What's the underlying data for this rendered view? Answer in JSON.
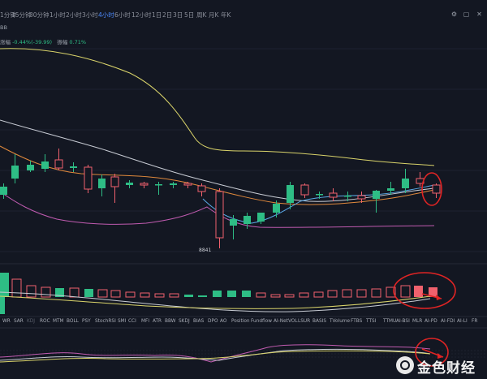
{
  "toolbar": {
    "timeframes": [
      "1分钟",
      "15分钟",
      "30分钟",
      "1小时",
      "2小时",
      "3小时",
      "4小时",
      "6小时",
      "12小时",
      "1日",
      "2日",
      "3日",
      "5日",
      "周K",
      "月K",
      "年K"
    ],
    "active_timeframe": "4小时",
    "icons": [
      "settings-icon",
      "fullscreen-icon",
      "close-icon"
    ]
  },
  "indicator_label": "BB",
  "legend": {
    "change_label": "涨幅",
    "change_value": "-0.44%(-39.99)",
    "amplitude_label": "振幅",
    "amplitude_value": "0.71%"
  },
  "low_price_label": "8841",
  "indicator_tabs": [
    "WR",
    "SAR",
    "KDJ",
    "ROC",
    "MTM",
    "BOLL",
    "PSY",
    "StochRSI",
    "SMI",
    "CCI",
    "MFI",
    "ATR",
    "BBW",
    "SKDJ",
    "BIAS",
    "DPO",
    "AO",
    "Position",
    "Fundflow",
    "AI-NetVOL",
    "LSUR",
    "BASIS",
    "TVolume",
    "FTBS",
    "TTSI",
    "TTMU",
    "AI-BSI",
    "MLR",
    "AI-PD",
    "AI-FDI",
    "AI-LI",
    "FR"
  ],
  "dim_tabs": [
    "KDJ"
  ],
  "watermark": "金色财经",
  "colors": {
    "up": "#2ebd85",
    "down": "#f0616d",
    "background": "#131722",
    "active": "#4e8cff"
  }
}
